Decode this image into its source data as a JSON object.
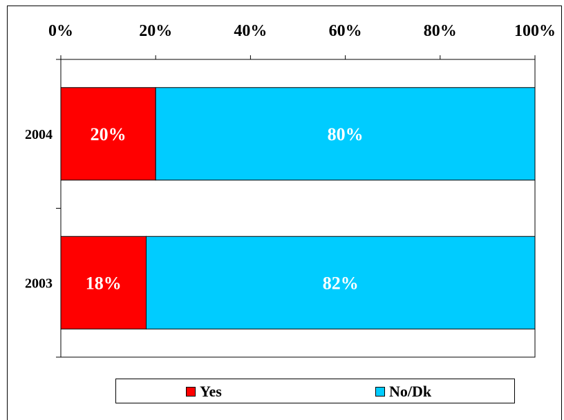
{
  "chart_data": {
    "type": "bar",
    "orientation": "horizontal",
    "stacked": true,
    "percent_scale": true,
    "categories": [
      "2004",
      "2003"
    ],
    "series": [
      {
        "name": "Yes",
        "values": [
          20,
          18
        ],
        "color": "#ff0000"
      },
      {
        "name": "No/Dk",
        "values": [
          80,
          82
        ],
        "color": "#00ccff"
      }
    ],
    "data_labels": [
      [
        "20%",
        "80%"
      ],
      [
        "18%",
        "82%"
      ]
    ],
    "xlim": [
      0,
      100
    ],
    "xticks": [
      "0%",
      "20%",
      "40%",
      "60%",
      "80%",
      "100%"
    ],
    "xaxis_position": "top",
    "grid": false,
    "legend_position": "bottom",
    "title": "",
    "xlabel": "",
    "ylabel": ""
  }
}
